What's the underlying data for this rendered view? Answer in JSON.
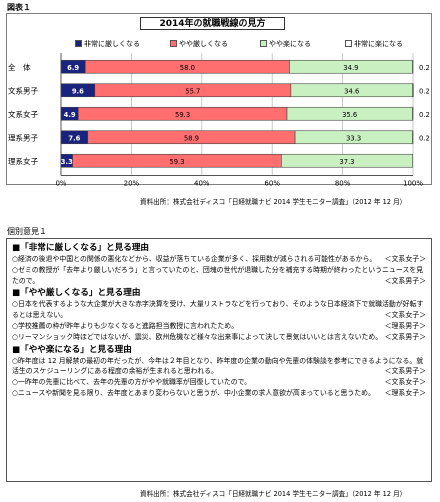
{
  "figure_label": "図表１",
  "chart_data": {
    "type": "bar",
    "stacked": true,
    "orientation": "horizontal",
    "title": "2014年の就職戦線の見方",
    "legend_position": "top",
    "categories": [
      "全　体",
      "文系男子",
      "文系女子",
      "理系男子",
      "理系女子"
    ],
    "series": [
      {
        "name": "非常に厳しくなる",
        "color": "#1a237e",
        "values": [
          6.9,
          9.6,
          4.9,
          7.6,
          3.3
        ]
      },
      {
        "name": "やや厳しくなる",
        "color": "#ff6f6f",
        "values": [
          58.0,
          55.7,
          59.3,
          58.9,
          59.3
        ]
      },
      {
        "name": "やや楽になる",
        "color": "#c9f0c0",
        "values": [
          34.9,
          34.6,
          35.6,
          33.3,
          37.3
        ]
      },
      {
        "name": "非常に楽になる",
        "color": "#ffffff",
        "values": [
          0.2,
          0.2,
          0.2,
          0.2,
          0.0
        ]
      }
    ],
    "right_labels": [
      "0.2",
      "0.2",
      "0.2",
      "0.2",
      ""
    ],
    "xlim": [
      0,
      100
    ],
    "x_ticks": [
      "0%",
      "20%",
      "40%",
      "60%",
      "80%",
      "100%"
    ],
    "grid": true
  },
  "source1": "資料出所：株式会社ディスコ「日経就職ナビ 2014 学生モニター調査」（2012 年 12 月）",
  "opinion_label": "個別意見１",
  "sections": [
    {
      "heading": "■「非常に厳しくなる」と見る理由",
      "opinions": [
        {
          "lines": [
            "○経済の後退や中国との関係の悪化などから、収益が落ちている企業が多く、採用数が減らされる可能性があるから。"
          ],
          "attr": "＜文系女子＞"
        },
        {
          "lines": [
            "○ゼミの教授が「去年より厳しいだろう」と言っていたのと、団塊の世代が退職した分を補充する時期が終わったというニュースを見たので。"
          ],
          "attr": "＜文系男子＞"
        }
      ]
    },
    {
      "heading": "■「やや厳しくなる」と見る理由",
      "opinions": [
        {
          "lines": [
            "○日本を代表するような大企業が大きな赤字決算を受け、大量リストラなどを行っており、そのような日本経済下で就職活動が好転するとは思えない。"
          ],
          "attr": "＜文系女子＞"
        },
        {
          "lines": [
            "○学校推薦の枠が昨年よりも少なくなると進路担当教授に言われたため。"
          ],
          "attr": "＜理系男子＞"
        },
        {
          "lines": [
            "○リーマンショック時ほどではないが、震災、欧州危機など様々な出来事によって決して景気はいいとは言えないため。"
          ],
          "attr": "＜文系男子＞"
        }
      ]
    },
    {
      "heading": "■「やや楽になる」と見る理由",
      "opinions": [
        {
          "lines": [
            "○昨年度は 12 月解禁の最初の年だったが、今年は２年目となり、昨年度の企業の動向や先輩の体験談を参考にできるようになる。就活生のスケジューリングにある程度の余裕が生まれると思われる。"
          ],
          "attr": "＜文系男子＞"
        },
        {
          "lines": [
            "○一昨年の先輩に比べて、去年の先輩の方がやや就職率が回復していたので。"
          ],
          "attr": "＜文系女子＞"
        },
        {
          "lines": [
            "○ニュースや新聞を見る限り、去年度とあまり変わらないと思うが、中小企業の求人意欲が高まっていると思うため。"
          ],
          "attr": "＜理系女子＞"
        }
      ]
    }
  ],
  "source2": "資料出所：株式会社ディスコ「日経就職ナビ 2014 学生モニター調査」（2012 年 12 月）"
}
